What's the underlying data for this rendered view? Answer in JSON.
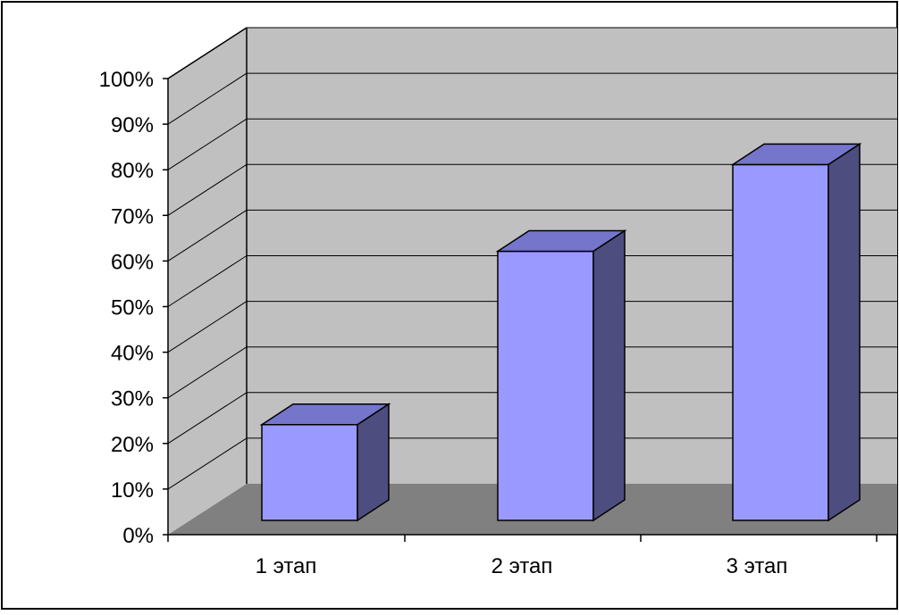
{
  "chart_data": {
    "type": "bar",
    "categories": [
      "1 этап",
      "2 этап",
      "3 этап"
    ],
    "values": [
      21,
      59,
      78
    ],
    "ylim": [
      0,
      100
    ],
    "ytick_step": 10,
    "y_unit_suffix": "%",
    "grid": true,
    "three_d": true,
    "title": "",
    "xlabel": "",
    "ylabel": ""
  },
  "colors": {
    "wall": "#c0c0c0",
    "floor": "#808080",
    "bar_front": "#9999ff",
    "bar_top": "#7575cc",
    "bar_side": "#4d4d80",
    "grid": "#000000",
    "frame": "#000000"
  }
}
